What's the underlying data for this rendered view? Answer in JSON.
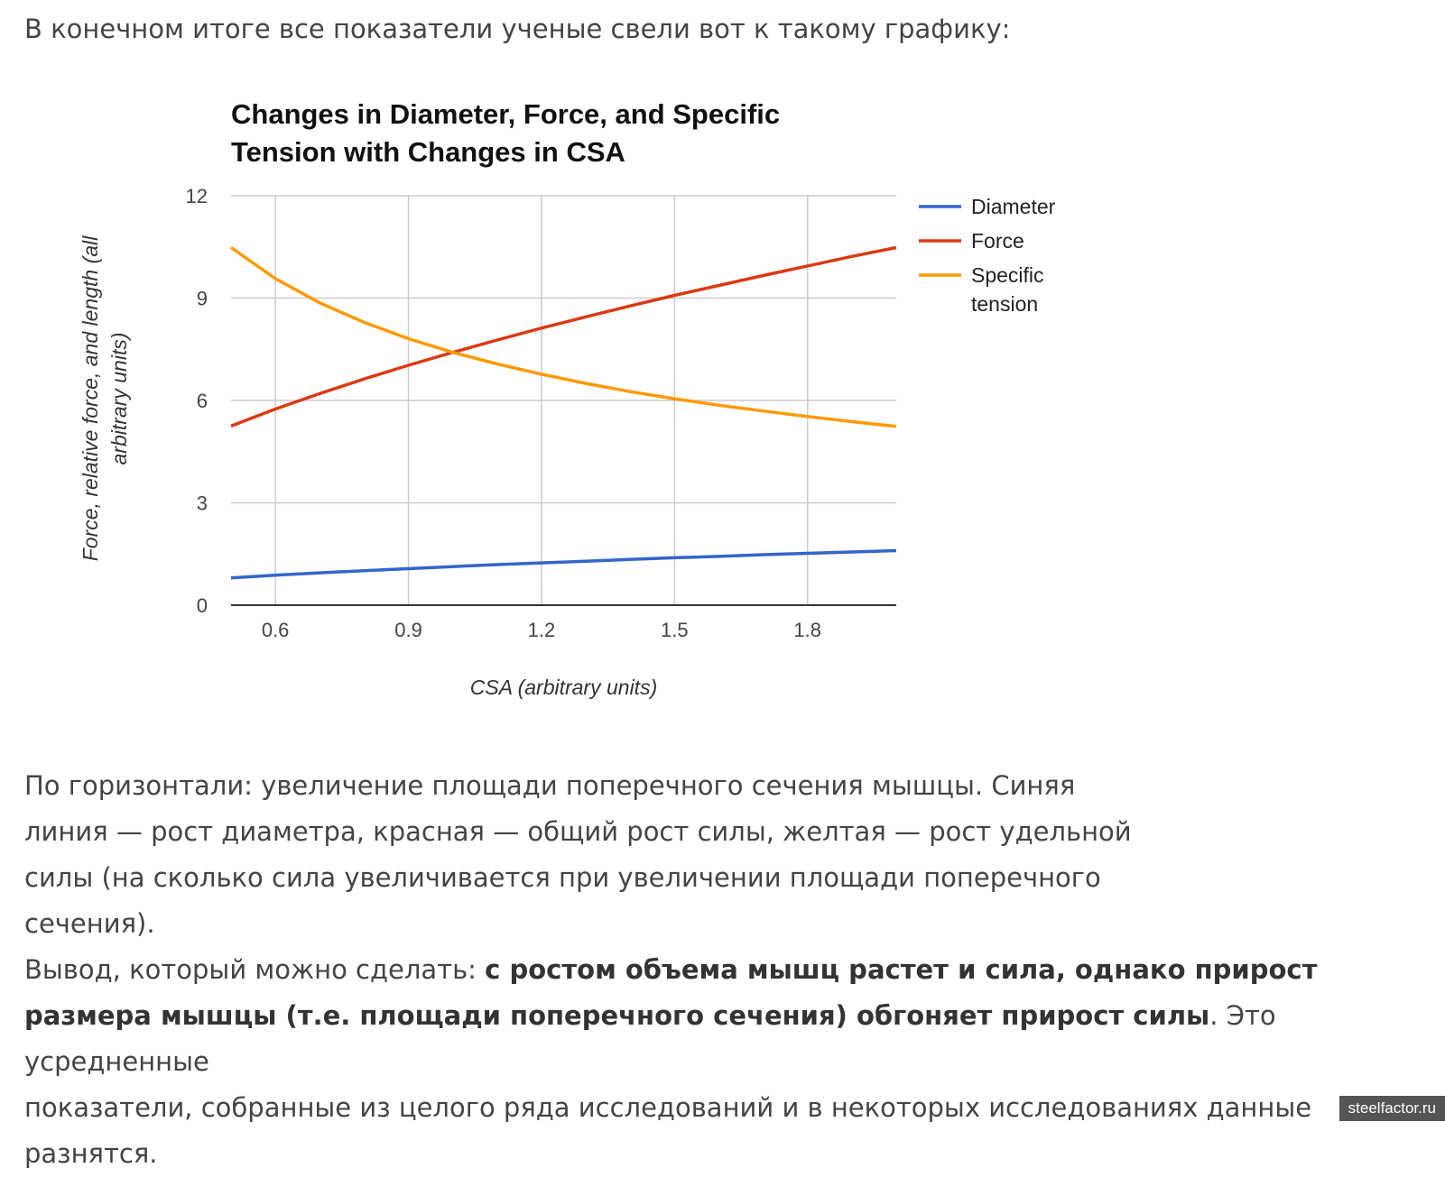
{
  "intro": "В конечном итоге все показатели ученые свели вот к такому графику:",
  "chart_data": {
    "type": "line",
    "title": "Changes in Diameter, Force, and Specific Tension with Changes in CSA",
    "xlabel": "CSA (arbitrary units)",
    "ylabel_lines": [
      "Force, relative force, and length (all",
      "arbitrary units)"
    ],
    "xlim": [
      0.5,
      2.0
    ],
    "ylim": [
      0,
      12
    ],
    "x_ticks": [
      "0.6",
      "0.9",
      "1.2",
      "1.5",
      "1.8"
    ],
    "y_ticks": [
      "0",
      "3",
      "6",
      "9",
      "12"
    ],
    "grid": true,
    "legend_position": "right",
    "x": [
      0.5,
      0.6,
      0.7,
      0.8,
      0.9,
      1.0,
      1.1,
      1.2,
      1.3,
      1.4,
      1.5,
      1.6,
      1.7,
      1.8,
      1.9,
      2.0
    ],
    "series": [
      {
        "name": "Diameter",
        "color": "#3366cc",
        "values": [
          0.8,
          0.88,
          0.95,
          1.01,
          1.07,
          1.13,
          1.19,
          1.24,
          1.29,
          1.34,
          1.39,
          1.43,
          1.48,
          1.52,
          1.56,
          1.6
        ]
      },
      {
        "name": "Force",
        "color": "#dc3912",
        "values": [
          5.25,
          5.75,
          6.2,
          6.63,
          7.03,
          7.41,
          7.77,
          8.12,
          8.45,
          8.77,
          9.08,
          9.37,
          9.66,
          9.94,
          10.22,
          10.48
        ]
      },
      {
        "name": "Specific tension",
        "legend_lines": [
          "Specific",
          "tension"
        ],
        "color": "#ff9900",
        "values": [
          10.48,
          9.57,
          8.86,
          8.29,
          7.81,
          7.41,
          7.07,
          6.77,
          6.5,
          6.26,
          6.05,
          5.86,
          5.69,
          5.53,
          5.38,
          5.24
        ]
      }
    ]
  },
  "paragraph1_lines": [
    "По горизонтали: увеличение площади поперечного сечения мышцы. Синяя",
    "линия — рост диаметра, красная — общий рост силы, желтая — рост удельной",
    "силы (на сколько сила увеличивается при увеличении площади поперечного",
    "сечения)."
  ],
  "paragraph2": {
    "prefix": "Вывод, который можно сделать: ",
    "bold_line1": "с ростом объема мышц растет и сила, однако прирост",
    "bold_line2": "размера мышцы (т.е. площади поперечного сечения) обгоняет прирост силы",
    "suffix_line2": ". Это усредненные",
    "line3": "показатели, собранные из целого ряда исследований и в некоторых исследованиях данные разнятся."
  },
  "watermark": "steelfactor.ru"
}
